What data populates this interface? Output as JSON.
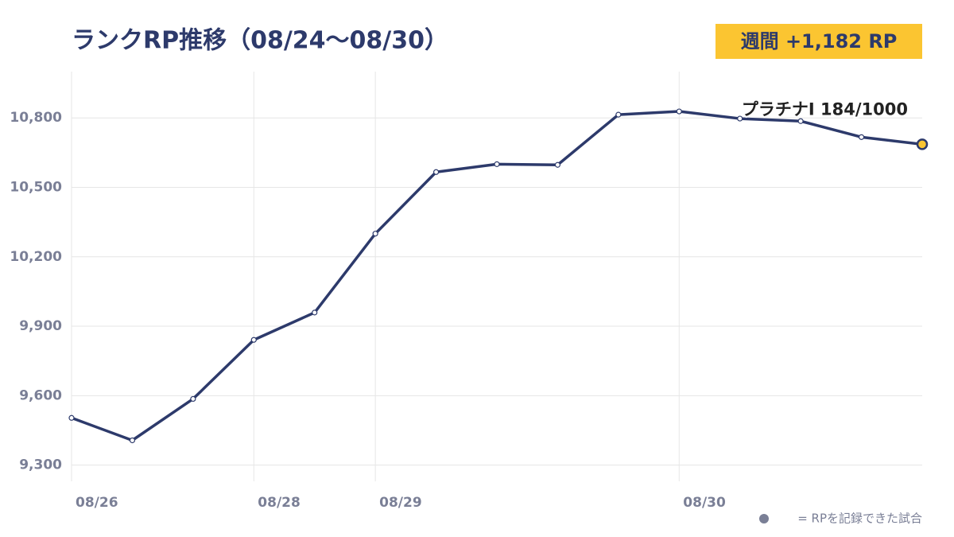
{
  "chart_data": {
    "type": "line",
    "title": "ランクRP推移（08/24〜08/30）",
    "badge": "週間 +1,182 RP",
    "annotation": "プラチナI 184/1000",
    "legend_note": "= RPを記録できた試合",
    "categories": [
      "08/26",
      null,
      null,
      "08/28",
      null,
      "08/29",
      null,
      null,
      null,
      null,
      "08/30",
      null,
      null,
      null,
      null
    ],
    "series": [
      {
        "color": "#2d3a6b",
        "values": [
          9504,
          9407,
          9586,
          9841,
          9959,
          10300,
          10566,
          10600,
          10597,
          10814,
          10828,
          10797,
          10786,
          10717,
          10686
        ]
      }
    ],
    "ylim": [
      9230,
      11000
    ],
    "yticks": [
      {
        "value": 9300,
        "label": "9,300"
      },
      {
        "value": 9600,
        "label": "9,600"
      },
      {
        "value": 9900,
        "label": "9,900"
      },
      {
        "value": 10200,
        "label": "10,200"
      },
      {
        "value": 10500,
        "label": "10,500"
      },
      {
        "value": 10800,
        "label": "10,800"
      }
    ],
    "grid": true,
    "highlight_color": "#fbc531"
  }
}
